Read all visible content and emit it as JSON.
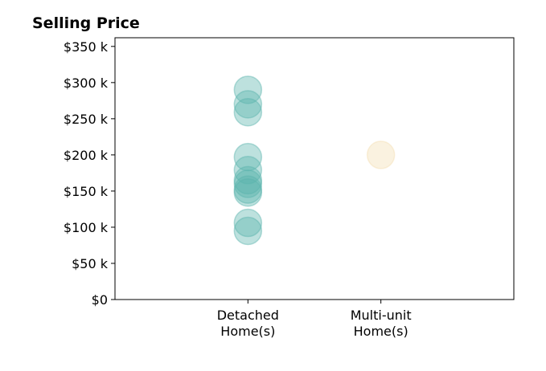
{
  "chart_data": {
    "type": "scatter",
    "title": "Selling Price",
    "xlabel": "",
    "ylabel": "",
    "categories": [
      [
        "Detached",
        "Home(s)"
      ],
      [
        "Multi-unit",
        "Home(s)"
      ]
    ],
    "y_ticks": [
      {
        "value": 0,
        "label": "$0"
      },
      {
        "value": 50000,
        "label": "$50 k"
      },
      {
        "value": 100000,
        "label": "$100 k"
      },
      {
        "value": 150000,
        "label": "$150 k"
      },
      {
        "value": 200000,
        "label": "$200 k"
      },
      {
        "value": 250000,
        "label": "$250 k"
      },
      {
        "value": 300000,
        "label": "$300 k"
      },
      {
        "value": 350000,
        "label": "$350 k"
      }
    ],
    "ylim": [
      0,
      362000
    ],
    "xlim": [
      -1,
      2
    ],
    "grid": false,
    "series": [
      {
        "category_index": 0,
        "color": "#5ab4ac",
        "values": [
          290000,
          270000,
          259000,
          197000,
          179000,
          165000,
          160000,
          152000,
          148000,
          106000,
          95000
        ]
      },
      {
        "category_index": 1,
        "color": "#f3deb2",
        "values": [
          200000
        ]
      }
    ]
  }
}
